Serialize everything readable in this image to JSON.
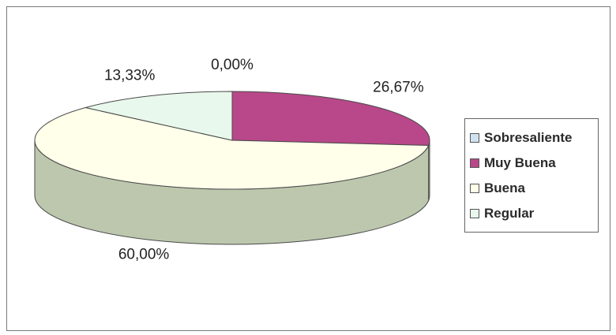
{
  "chart_data": {
    "type": "pie",
    "style": "3d",
    "categories": [
      "Sobresaliente",
      "Muy Buena",
      "Buena",
      "Regular"
    ],
    "values": [
      0.0,
      26.67,
      60.0,
      13.33
    ],
    "data_labels": [
      "0,00%",
      "26,67%",
      "60,00%",
      "13,33%"
    ],
    "colors": [
      "#cfe3ee",
      "#b8488a",
      "#ffffea",
      "#e8f8ec"
    ],
    "side_color": "#bcc7ad",
    "legend": {
      "placement": "right",
      "entries": [
        {
          "label": "Sobresaliente",
          "color": "#cfe3ee"
        },
        {
          "label": "Muy Buena",
          "color": "#b8488a"
        },
        {
          "label": "Buena",
          "color": "#ffffea"
        },
        {
          "label": "Regular",
          "color": "#e8f8ec"
        }
      ]
    },
    "title": ""
  }
}
